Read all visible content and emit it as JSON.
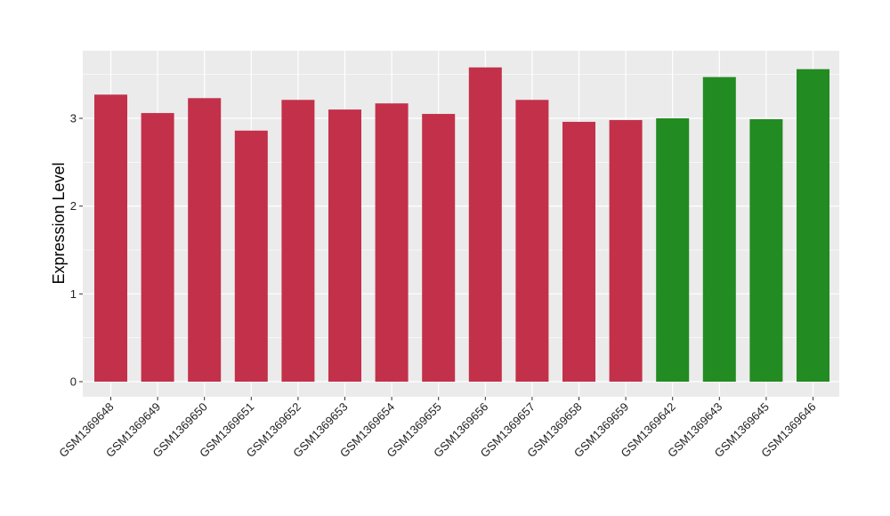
{
  "chart_data": {
    "type": "bar",
    "title": "",
    "xlabel": "",
    "ylabel": "Expression Level",
    "ylim": [
      0,
      3.8
    ],
    "yticks": [
      0,
      1,
      2,
      3
    ],
    "grid": true,
    "categories": [
      "GSM1369648",
      "GSM1369649",
      "GSM1369650",
      "GSM1369651",
      "GSM1369652",
      "GSM1369653",
      "GSM1369654",
      "GSM1369655",
      "GSM1369656",
      "GSM1369657",
      "GSM1369658",
      "GSM1369659",
      "GSM1369642",
      "GSM1369643",
      "GSM1369645",
      "GSM1369646"
    ],
    "values": [
      3.27,
      3.06,
      3.23,
      2.86,
      3.21,
      3.1,
      3.17,
      3.05,
      3.58,
      3.21,
      2.96,
      2.98,
      3.0,
      3.47,
      2.99,
      3.56
    ],
    "colors": [
      "#c3304a",
      "#c3304a",
      "#c3304a",
      "#c3304a",
      "#c3304a",
      "#c3304a",
      "#c3304a",
      "#c3304a",
      "#c3304a",
      "#c3304a",
      "#c3304a",
      "#c3304a",
      "#228b22",
      "#228b22",
      "#228b22",
      "#228b22"
    ],
    "panel_background": "#ebebeb",
    "gridline_color": "#ffffff"
  }
}
